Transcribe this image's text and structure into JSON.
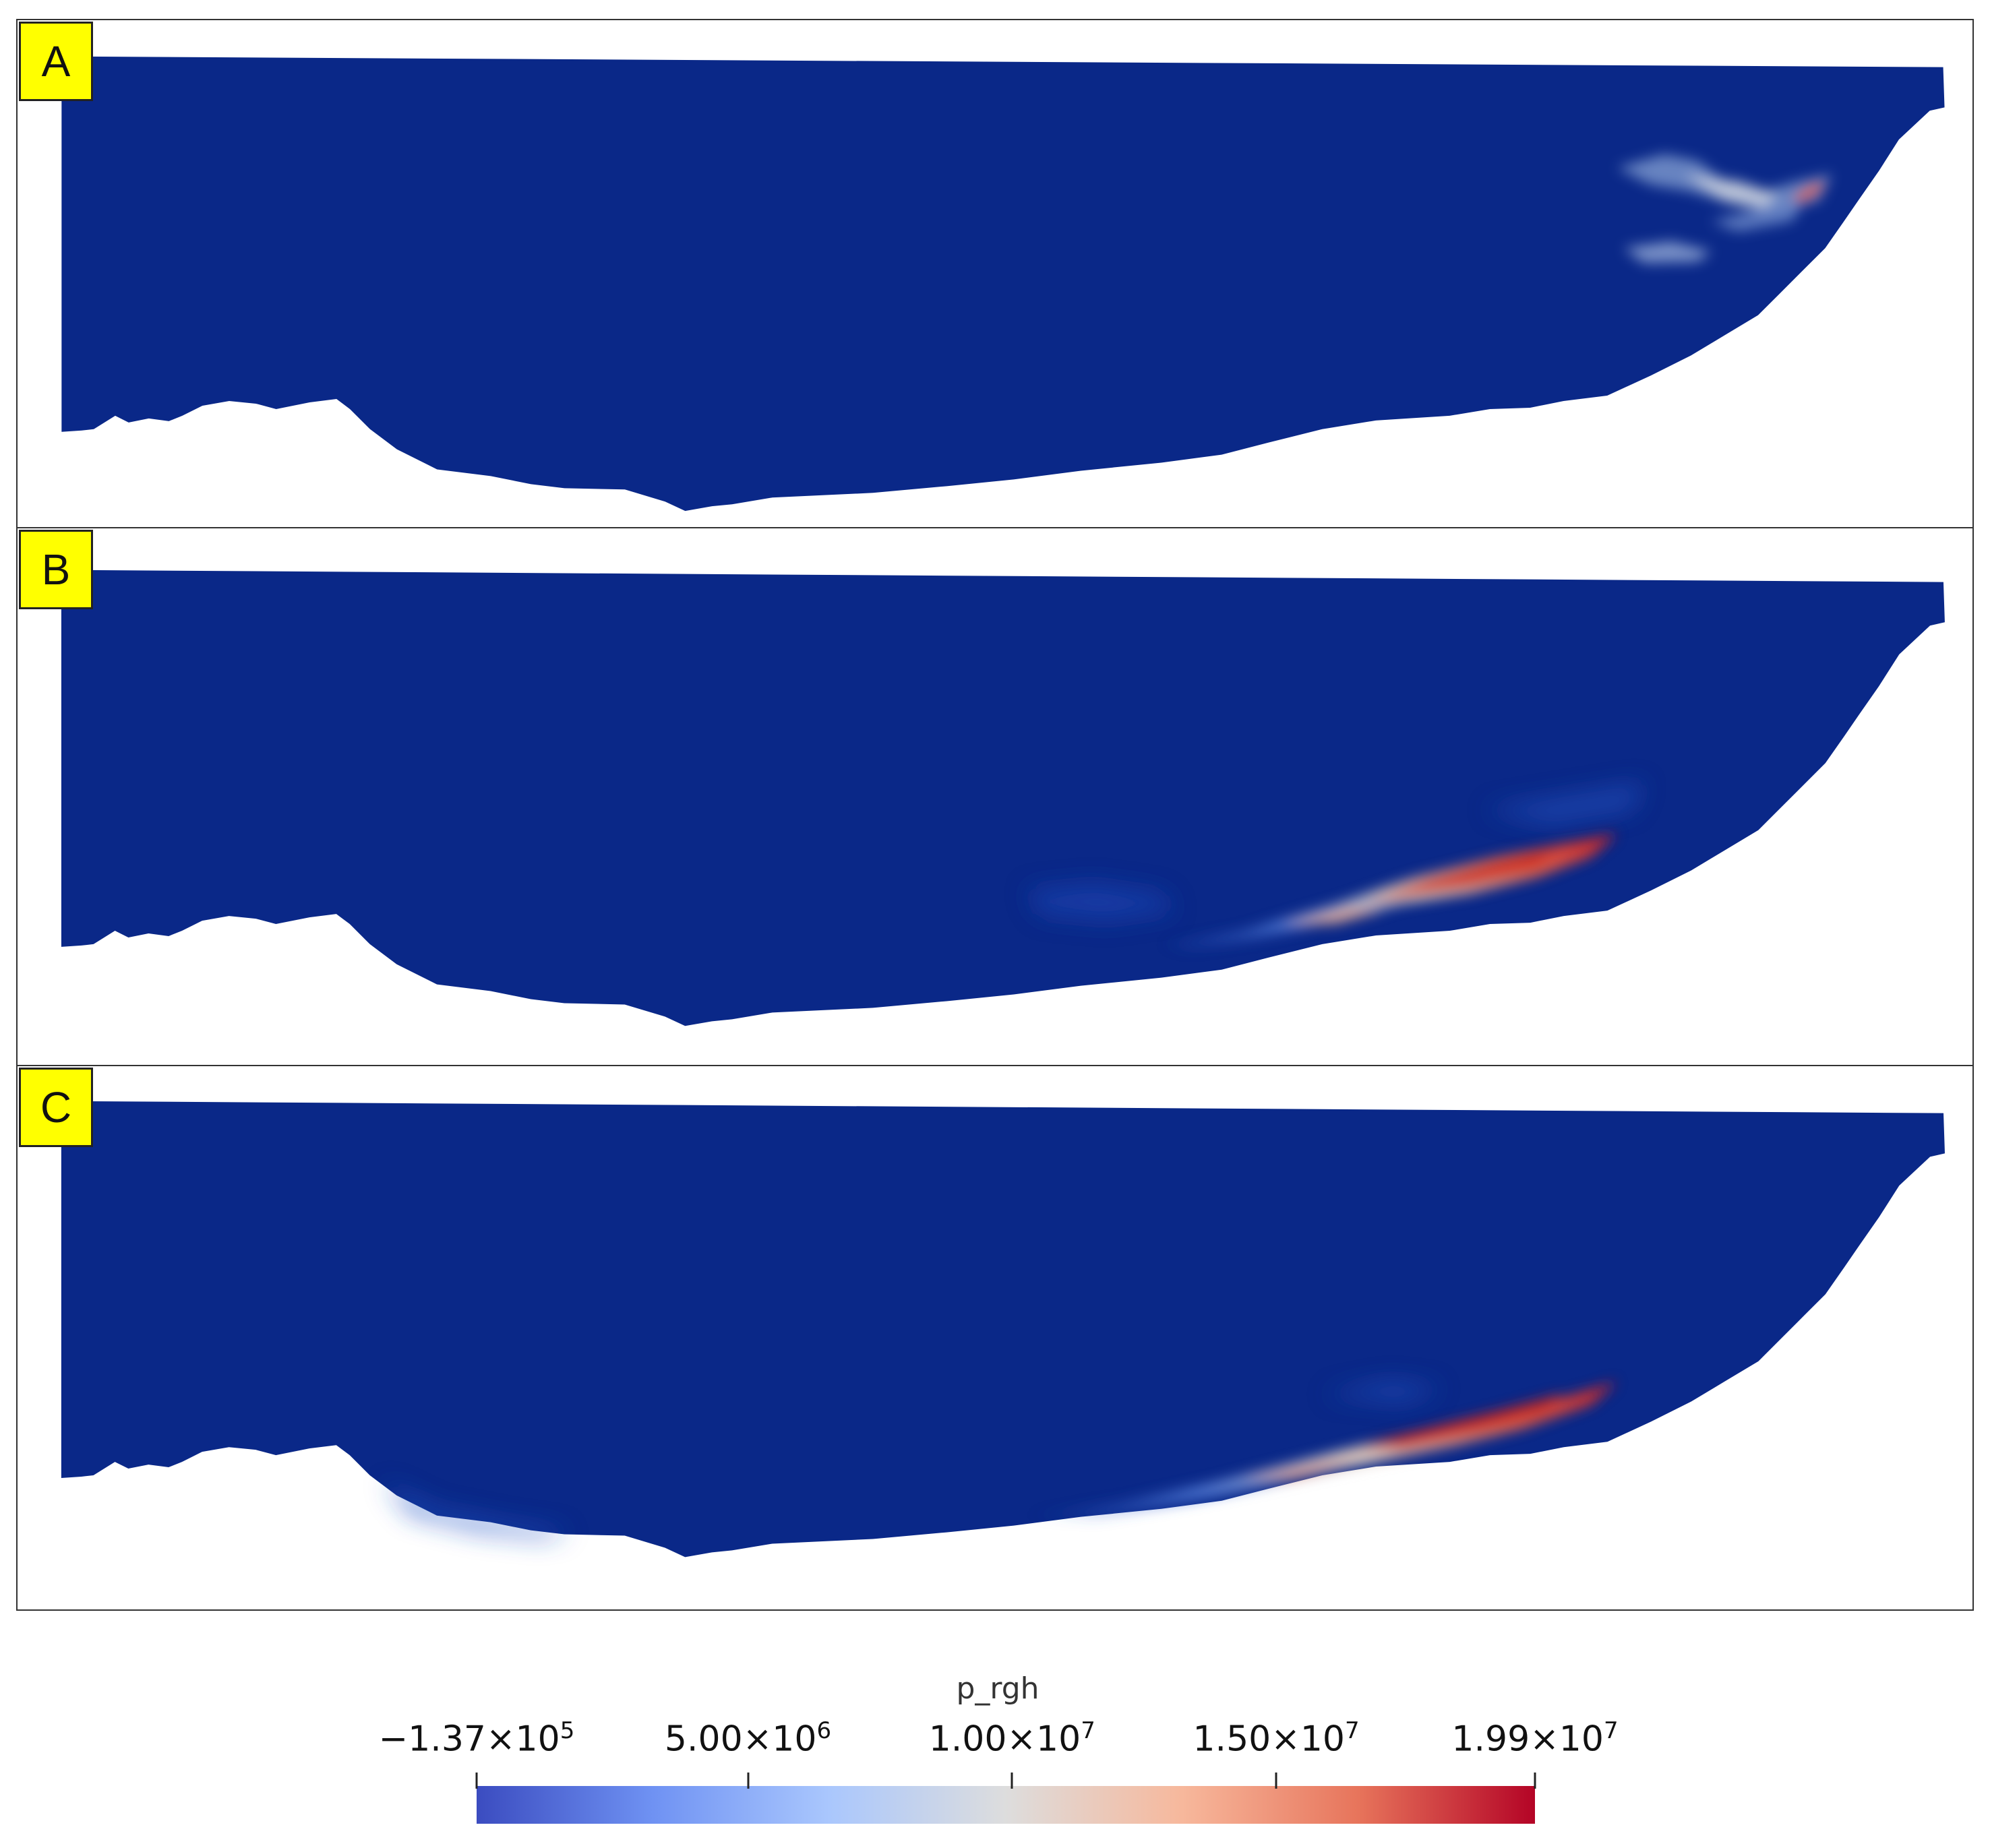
{
  "panels": [
    {
      "label": "A"
    },
    {
      "label": "B"
    },
    {
      "label": "C"
    }
  ],
  "colorbar": {
    "title": "p_rgh",
    "min": -137000,
    "max": 19900000,
    "ticks": [
      {
        "value": -137000,
        "mantissa": "−1.37×10",
        "exponent": "5"
      },
      {
        "value": 5000000,
        "mantissa": "5.00×10",
        "exponent": "6"
      },
      {
        "value": 10000000,
        "mantissa": "1.00×10",
        "exponent": "7"
      },
      {
        "value": 15000000,
        "mantissa": "1.50×10",
        "exponent": "7"
      },
      {
        "value": 19900000,
        "mantissa": "1.99×10",
        "exponent": "7"
      }
    ],
    "colormap": [
      "#3b4cc0",
      "#6f92f3",
      "#aac7fd",
      "#dddddd",
      "#f7b89c",
      "#e7745b",
      "#b40426"
    ]
  },
  "colors": {
    "field_base": "#0a2888",
    "field_bg": "#ffffff",
    "label_bg": "#ffff00"
  }
}
